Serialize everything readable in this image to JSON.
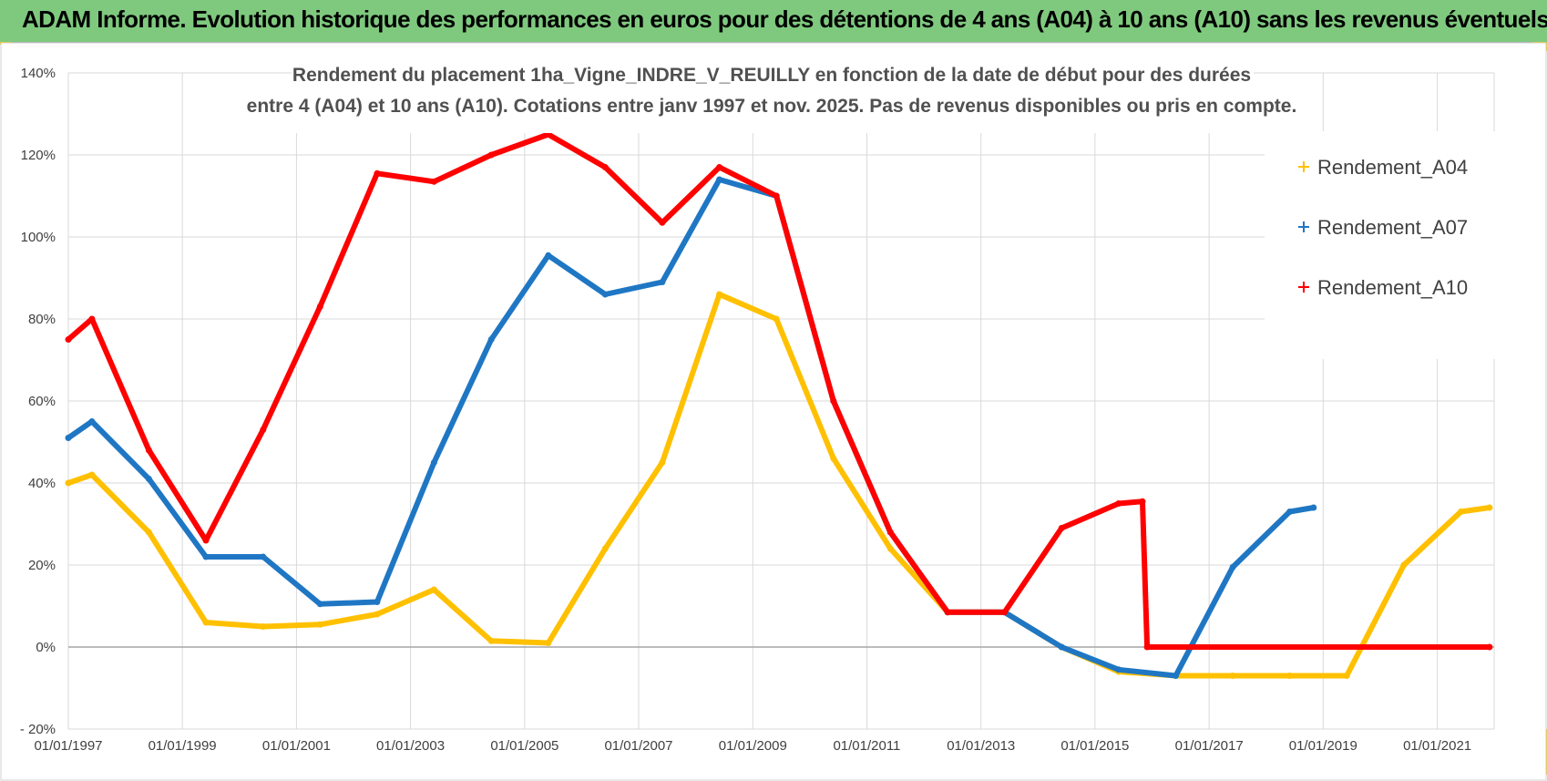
{
  "banner": {
    "title": "ADAM Informe. Evolution historique des performances en euros pour des détentions de 4 ans (A04) à 10 ans (A10) sans les revenus éventuels"
  },
  "colors": {
    "banner_bg": "#7fc97f",
    "a04": "#ffc000",
    "a07": "#1f77c4",
    "a10": "#ff0000"
  },
  "chart_data": {
    "type": "line",
    "title_lines": [
      "Rendement du placement 1ha_Vigne_INDRE_V_REUILLY en fonction de la date de début pour des durées",
      "entre 4 (A04) et 10 ans (A10).  Cotations entre janv 1997 et nov. 2025. Pas de revenus disponibles ou pris en compte."
    ],
    "xlabel": "",
    "ylabel": "",
    "x_ticks": [
      "01/01/1997",
      "01/01/1999",
      "01/01/2001",
      "01/01/2003",
      "01/01/2005",
      "01/01/2007",
      "01/01/2009",
      "01/01/2011",
      "01/01/2013",
      "01/01/2015",
      "01/01/2017",
      "01/01/2019",
      "01/01/2021"
    ],
    "y_ticks": [
      "- 20%",
      "0%",
      "20%",
      "40%",
      "60%",
      "80%",
      "100%",
      "120%",
      "140%"
    ],
    "xlim": [
      "1997-01-01",
      "2021-12-31"
    ],
    "ylim": [
      -20,
      140
    ],
    "grid": true,
    "legend_position": "right",
    "series": [
      {
        "name": "Rendement_A04",
        "color": "#ffc000",
        "points": [
          [
            "1997-01-01",
            40
          ],
          [
            "1997-06-01",
            42
          ],
          [
            "1998-06-01",
            28
          ],
          [
            "1999-06-01",
            6
          ],
          [
            "2000-06-01",
            5
          ],
          [
            "2001-06-01",
            5.5
          ],
          [
            "2002-06-01",
            8
          ],
          [
            "2003-06-01",
            14
          ],
          [
            "2004-06-01",
            1.5
          ],
          [
            "2005-06-01",
            1
          ],
          [
            "2006-06-01",
            24
          ],
          [
            "2007-06-01",
            45
          ],
          [
            "2008-06-01",
            86
          ],
          [
            "2009-06-01",
            80
          ],
          [
            "2010-06-01",
            46
          ],
          [
            "2011-06-01",
            24
          ],
          [
            "2012-06-01",
            8.5
          ],
          [
            "2013-06-01",
            8.5
          ],
          [
            "2014-06-01",
            0
          ],
          [
            "2015-06-01",
            -6
          ],
          [
            "2016-06-01",
            -7
          ],
          [
            "2017-06-01",
            -7
          ],
          [
            "2018-06-01",
            -7
          ],
          [
            "2019-06-01",
            -7
          ],
          [
            "2020-06-01",
            20
          ],
          [
            "2021-06-01",
            33
          ],
          [
            "2021-12-01",
            34
          ]
        ]
      },
      {
        "name": "Rendement_A07",
        "color": "#1f77c4",
        "points": [
          [
            "1997-01-01",
            51
          ],
          [
            "1997-06-01",
            55
          ],
          [
            "1998-06-01",
            41
          ],
          [
            "1999-06-01",
            22
          ],
          [
            "2000-06-01",
            22
          ],
          [
            "2001-06-01",
            10.5
          ],
          [
            "2002-06-01",
            11
          ],
          [
            "2003-06-01",
            45
          ],
          [
            "2004-06-01",
            75
          ],
          [
            "2005-06-01",
            95.5
          ],
          [
            "2006-06-01",
            86
          ],
          [
            "2007-06-01",
            89
          ],
          [
            "2008-06-01",
            114
          ],
          [
            "2009-06-01",
            110
          ],
          [
            "2010-06-01",
            60
          ],
          [
            "2011-06-01",
            28
          ],
          [
            "2012-06-01",
            8.5
          ],
          [
            "2013-06-01",
            8.5
          ],
          [
            "2014-06-01",
            0
          ],
          [
            "2015-06-01",
            -5.5
          ],
          [
            "2016-06-01",
            -7
          ],
          [
            "2017-06-01",
            19.5
          ],
          [
            "2018-06-01",
            33
          ],
          [
            "2018-11-01",
            34
          ]
        ]
      },
      {
        "name": "Rendement_A10",
        "color": "#ff0000",
        "points": [
          [
            "1997-01-01",
            75
          ],
          [
            "1997-06-01",
            80
          ],
          [
            "1998-06-01",
            48
          ],
          [
            "1999-06-01",
            26
          ],
          [
            "2000-06-01",
            53
          ],
          [
            "2001-06-01",
            83
          ],
          [
            "2002-06-01",
            115.5
          ],
          [
            "2003-06-01",
            113.5
          ],
          [
            "2004-06-01",
            120
          ],
          [
            "2005-06-01",
            125
          ],
          [
            "2006-06-01",
            117
          ],
          [
            "2007-06-01",
            103.5
          ],
          [
            "2008-06-01",
            117
          ],
          [
            "2009-06-01",
            110
          ],
          [
            "2010-06-01",
            60
          ],
          [
            "2011-06-01",
            28
          ],
          [
            "2012-06-01",
            8.5
          ],
          [
            "2013-06-01",
            8.5
          ],
          [
            "2014-06-01",
            29
          ],
          [
            "2015-06-01",
            35
          ],
          [
            "2015-11-01",
            35.5
          ],
          [
            "2015-12-01",
            0
          ],
          [
            "2021-12-01",
            0
          ]
        ]
      }
    ]
  }
}
